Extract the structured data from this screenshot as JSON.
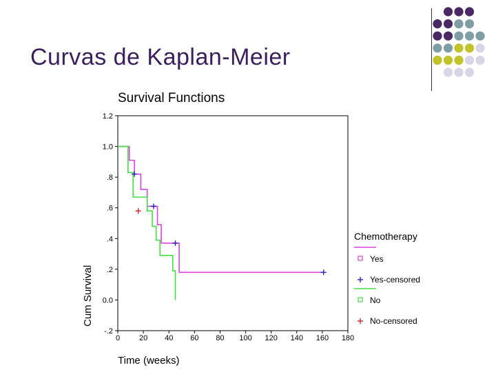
{
  "slide": {
    "title": "Curvas de Kaplan-Meier"
  },
  "decor": {
    "dot_colors": {
      "purple": "#4a2863",
      "teal": "#7f9ea3",
      "olive": "#c2c22a",
      "lavender": "#d6d6e6"
    }
  },
  "chart_data": {
    "type": "line",
    "title": "Survival Functions",
    "xlabel": "Time (weeks)",
    "ylabel": "Cum Survival",
    "xlim": [
      0,
      180
    ],
    "ylim": [
      -0.2,
      1.2
    ],
    "xticks": [
      0,
      20,
      40,
      60,
      80,
      100,
      120,
      140,
      160,
      180
    ],
    "xtick_labels": [
      "0",
      "20",
      "40",
      "60",
      "80",
      "100",
      "120",
      "140",
      "160",
      "180"
    ],
    "yticks": [
      -0.2,
      0,
      0.2,
      0.4,
      0.6,
      0.8,
      1.0,
      1.2
    ],
    "ytick_labels": [
      "-.2",
      "0.0",
      ".2",
      ".4",
      ".6",
      ".8",
      "1.0",
      "1.2"
    ],
    "legend_title": "Chemotherapy",
    "legend_position": "right",
    "series": [
      {
        "name": "Yes",
        "color": "#e040e0",
        "x": [
          0,
          5,
          9,
          13,
          18,
          23,
          31,
          34,
          48,
          161
        ],
        "y": [
          1.0,
          1.0,
          0.91,
          0.82,
          0.72,
          0.61,
          0.49,
          0.37,
          0.18,
          0.18
        ]
      },
      {
        "name": "No",
        "color": "#40e040",
        "x": [
          0,
          5,
          8,
          12,
          23,
          27,
          30,
          33,
          43,
          45,
          45
        ],
        "y": [
          1.0,
          1.0,
          0.83,
          0.67,
          0.58,
          0.48,
          0.39,
          0.29,
          0.19,
          0.1,
          0.0
        ]
      }
    ],
    "censored": [
      {
        "name": "Yes-censored",
        "color": "#2222bb",
        "points": [
          [
            13,
            0.82
          ],
          [
            28,
            0.61
          ],
          [
            45,
            0.37
          ],
          [
            161,
            0.18
          ]
        ]
      },
      {
        "name": "No-censored",
        "color": "#cc2222",
        "points": [
          [
            16,
            0.58
          ]
        ]
      }
    ],
    "legend": [
      {
        "label": "Yes",
        "marker": "square",
        "color": "#e040e0",
        "line": true
      },
      {
        "label": "Yes-censored",
        "marker": "plus",
        "color": "#2222bb",
        "line": false
      },
      {
        "label": "No",
        "marker": "square",
        "color": "#40e040",
        "line": true
      },
      {
        "label": "No-censored",
        "marker": "plus",
        "color": "#cc2222",
        "line": false
      }
    ]
  }
}
